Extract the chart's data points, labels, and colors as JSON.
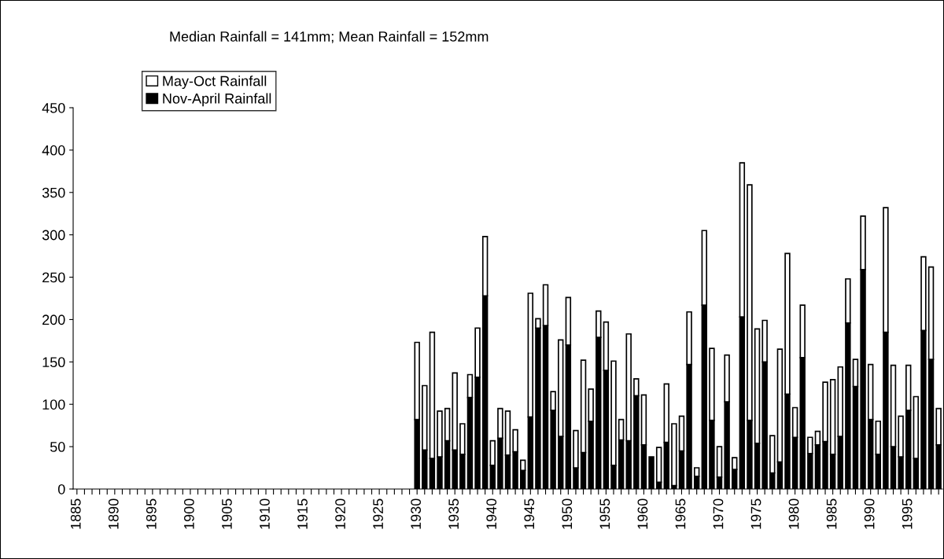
{
  "chart_data": {
    "type": "bar",
    "title": "Median Rainfall = 141mm; Mean Rainfall = 152mm",
    "stacked": true,
    "categories": [
      "1885",
      null,
      null,
      null,
      null,
      "1890",
      null,
      null,
      null,
      null,
      "1895",
      null,
      null,
      null,
      null,
      "1900",
      null,
      null,
      null,
      null,
      "1905",
      null,
      null,
      null,
      null,
      "1910",
      null,
      null,
      null,
      null,
      "1915",
      null,
      null,
      null,
      null,
      "1920",
      null,
      null,
      null,
      null,
      "1925",
      null,
      null,
      null,
      null,
      "1930",
      null,
      null,
      null,
      null,
      "1935",
      null,
      null,
      null,
      null,
      "1940",
      null,
      null,
      null,
      null,
      "1945",
      null,
      null,
      null,
      null,
      "1950",
      null,
      null,
      null,
      null,
      "1955",
      null,
      null,
      null,
      null,
      "1960",
      null,
      null,
      null,
      null,
      "1965",
      null,
      null,
      null,
      null,
      "1970",
      null,
      null,
      null,
      null,
      "1975",
      null,
      null,
      null,
      null,
      "1980",
      null,
      null,
      null,
      null,
      "1985",
      null,
      null,
      null,
      null,
      "1990",
      null,
      null,
      null,
      null,
      "1995",
      null,
      null,
      null,
      null
    ],
    "series": [
      {
        "name": "Nov-April Rainfall",
        "color": "#000000",
        "values": [
          null,
          null,
          null,
          null,
          null,
          null,
          null,
          null,
          null,
          null,
          null,
          null,
          null,
          null,
          null,
          null,
          null,
          null,
          null,
          null,
          null,
          null,
          null,
          null,
          null,
          null,
          null,
          null,
          null,
          null,
          null,
          null,
          null,
          null,
          null,
          null,
          null,
          null,
          null,
          null,
          null,
          null,
          null,
          null,
          null,
          82,
          46,
          36,
          38,
          57,
          46,
          41,
          108,
          132,
          228,
          28,
          60,
          40,
          44,
          22,
          85,
          190,
          193,
          93,
          62,
          170,
          25,
          43,
          80,
          179,
          140,
          28,
          58,
          57,
          110,
          52,
          38,
          8,
          55,
          4,
          45,
          147,
          15,
          217,
          81,
          14,
          103,
          23,
          203,
          81,
          54,
          150,
          19,
          32,
          112,
          61,
          155,
          42,
          52,
          56,
          41,
          62,
          196,
          121,
          259,
          82,
          41,
          185,
          50,
          38,
          93,
          36,
          187,
          153,
          52
        ]
      },
      {
        "name": "May-Oct Rainfall",
        "color": "#ffffff",
        "values": [
          null,
          null,
          null,
          null,
          null,
          null,
          null,
          null,
          null,
          null,
          null,
          null,
          null,
          null,
          null,
          null,
          null,
          null,
          null,
          null,
          null,
          null,
          null,
          null,
          null,
          null,
          null,
          null,
          null,
          null,
          null,
          null,
          null,
          null,
          null,
          null,
          null,
          null,
          null,
          null,
          null,
          null,
          null,
          null,
          null,
          91,
          76,
          149,
          54,
          38,
          91,
          36,
          27,
          58,
          70,
          29,
          35,
          52,
          26,
          12,
          146,
          11,
          48,
          22,
          114,
          56,
          44,
          109,
          38,
          31,
          57,
          123,
          24,
          126,
          20,
          59,
          null,
          41,
          69,
          73,
          41,
          62,
          10,
          88,
          85,
          36,
          55,
          14,
          182,
          278,
          135,
          49,
          44,
          133,
          166,
          35,
          62,
          19,
          16,
          70,
          88,
          82,
          52,
          32,
          63,
          65,
          39,
          147,
          96,
          48,
          53,
          73,
          87,
          109,
          43
        ]
      }
    ],
    "ylim": [
      0,
      450
    ],
    "yticks": [
      0,
      50,
      100,
      150,
      200,
      250,
      300,
      350,
      400,
      450
    ],
    "legend": "top left"
  }
}
